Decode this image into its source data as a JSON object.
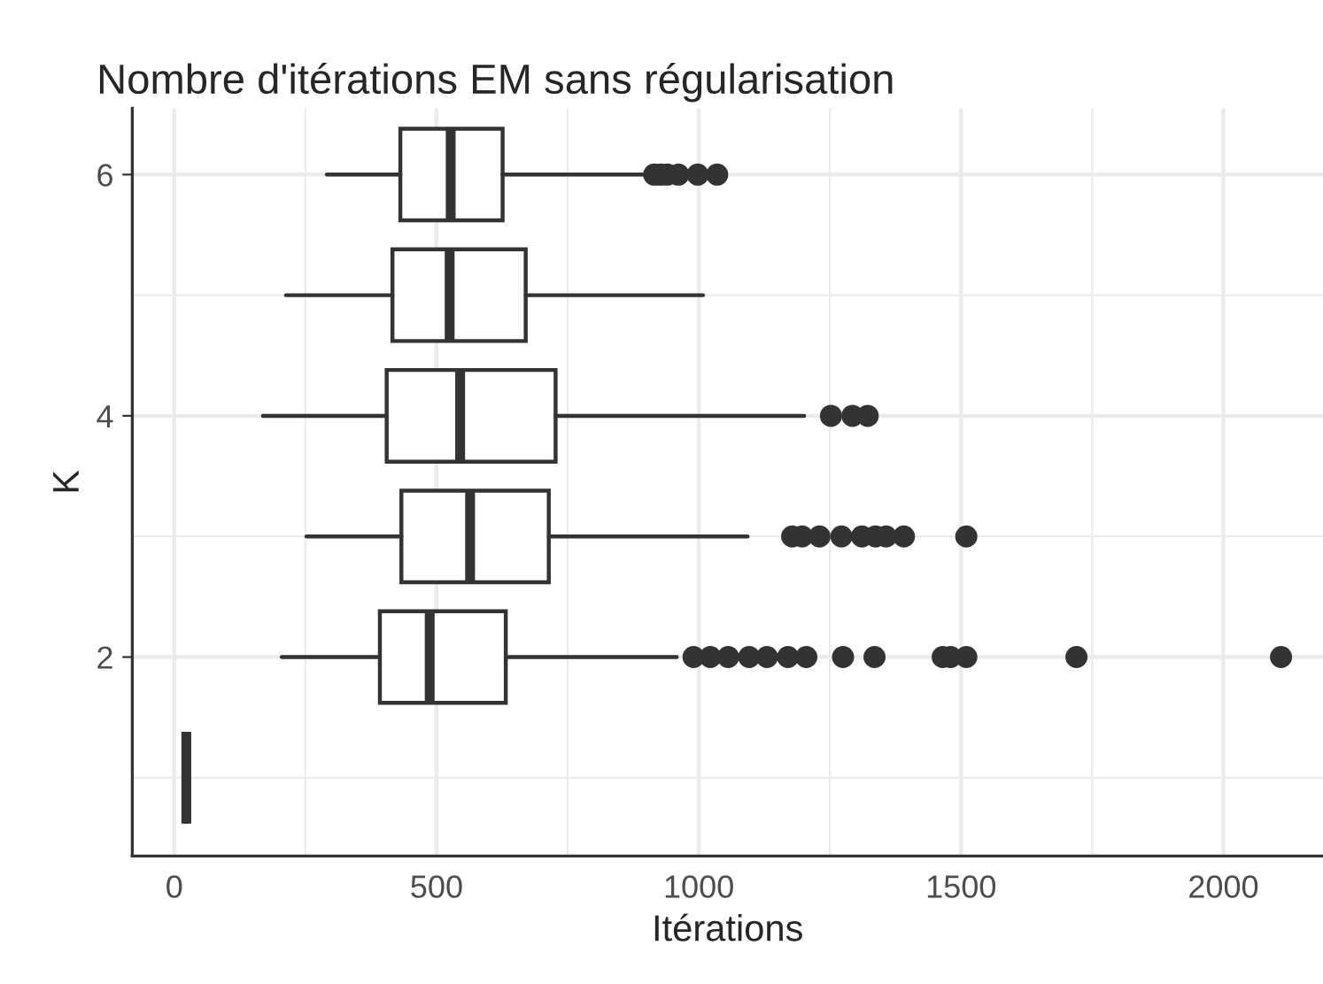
{
  "chart_data": {
    "type": "box",
    "title": "Nombre d'itérations EM sans régularisation",
    "xlabel": "Itérations",
    "ylabel": "K",
    "orientation": "horizontal",
    "categories": [
      "6",
      null,
      "4",
      null,
      "2",
      null
    ],
    "boxes": [
      {
        "low": 291,
        "q1": 431,
        "median": 527,
        "q3": 626,
        "high": 895,
        "outliers": [
          915,
          927,
          940,
          961,
          998,
          1035
        ]
      },
      {
        "low": 213,
        "q1": 416,
        "median": 525,
        "q3": 670,
        "high": 1008
      },
      {
        "low": 169,
        "q1": 405,
        "median": 545,
        "q3": 727,
        "high": 1201,
        "outliers": [
          1252,
          1293,
          1322
        ]
      },
      {
        "low": 252,
        "q1": 433,
        "median": 564,
        "q3": 714,
        "high": 1093,
        "outliers": [
          1178,
          1197,
          1230,
          1272,
          1311,
          1337,
          1357,
          1391,
          1510
        ]
      },
      {
        "low": 205,
        "q1": 392,
        "median": 487,
        "q3": 632,
        "high": 958,
        "outliers": [
          990,
          1022,
          1056,
          1096,
          1130,
          1170,
          1205,
          1275,
          1335,
          1465,
          1480,
          1510,
          1720,
          2110
        ]
      },
      {
        "low": 23,
        "q1": 23,
        "median": 23,
        "q3": 23,
        "high": 23
      }
    ],
    "color": "#333333",
    "xlim": [
      -80,
      2190
    ],
    "xticks": [
      0,
      500,
      1000,
      1500,
      2000
    ],
    "grid": true
  }
}
